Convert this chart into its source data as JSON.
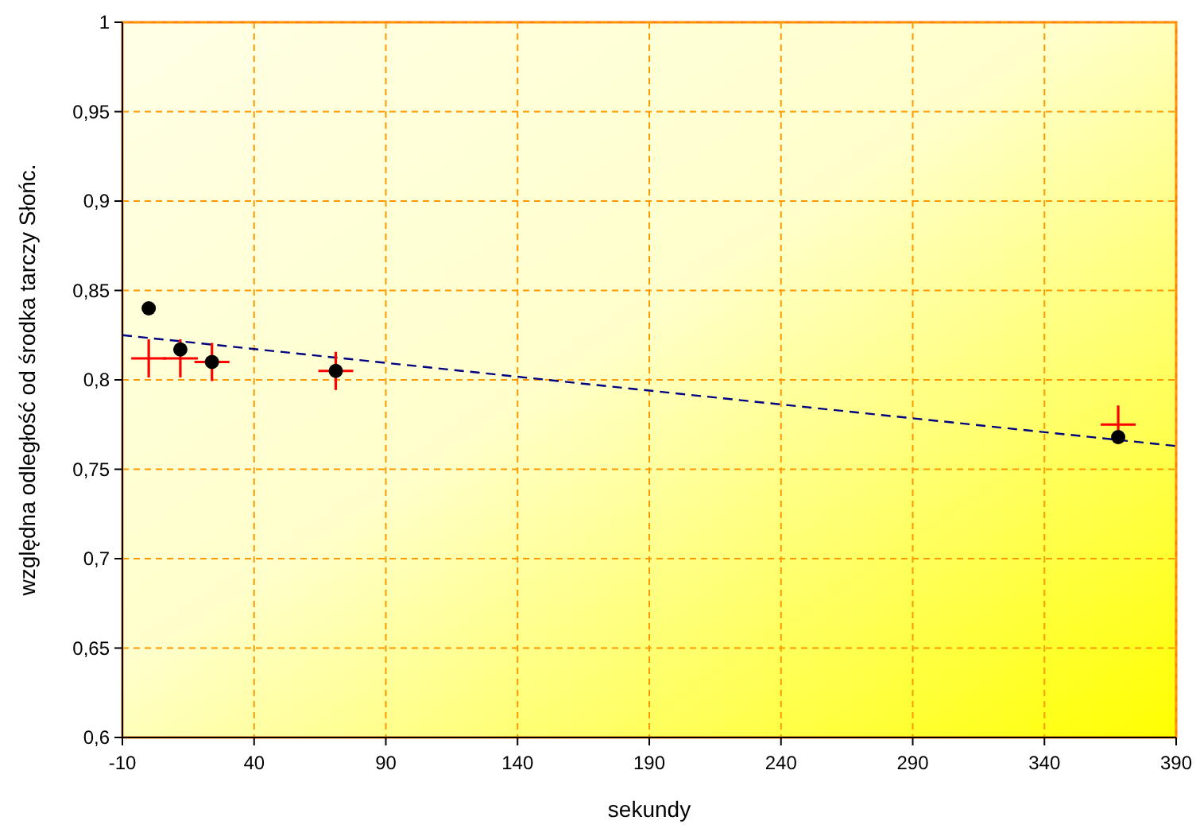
{
  "chart_data": {
    "type": "scatter",
    "xlabel": "sekundy",
    "ylabel": "względna odległość od środka tarczy Słońc.",
    "xlim": [
      -10,
      390
    ],
    "xticks": [
      -10,
      40,
      90,
      140,
      190,
      240,
      290,
      340,
      390
    ],
    "ylim": [
      0.6,
      1
    ],
    "yticks": [
      {
        "value": 0.6,
        "label": "0,6"
      },
      {
        "value": 0.65,
        "label": "0,65"
      },
      {
        "value": 0.7,
        "label": "0,7"
      },
      {
        "value": 0.75,
        "label": "0,75"
      },
      {
        "value": 0.8,
        "label": "0,8"
      },
      {
        "value": 0.85,
        "label": "0,85"
      },
      {
        "value": 0.9,
        "label": "0,9"
      },
      {
        "value": 0.95,
        "label": "0,95"
      },
      {
        "value": 1,
        "label": "1"
      }
    ],
    "grid": true,
    "series": [
      {
        "type": "line",
        "color": "#000080",
        "line_style": "dashed",
        "marker": "none",
        "x": [
          -10,
          390
        ],
        "values": [
          0.825,
          0.763
        ]
      },
      {
        "type": "scatter",
        "color": "#ff0000",
        "marker": "cross",
        "x": [
          0,
          12,
          24,
          71,
          368
        ],
        "values": [
          0.812,
          0.812,
          0.81,
          0.805,
          0.775
        ]
      },
      {
        "color": "#000000",
        "marker": "circle",
        "x": [
          0,
          12,
          24,
          71,
          368
        ],
        "values": [
          0.84,
          0.817,
          0.81,
          0.805,
          0.768
        ]
      }
    ]
  }
}
